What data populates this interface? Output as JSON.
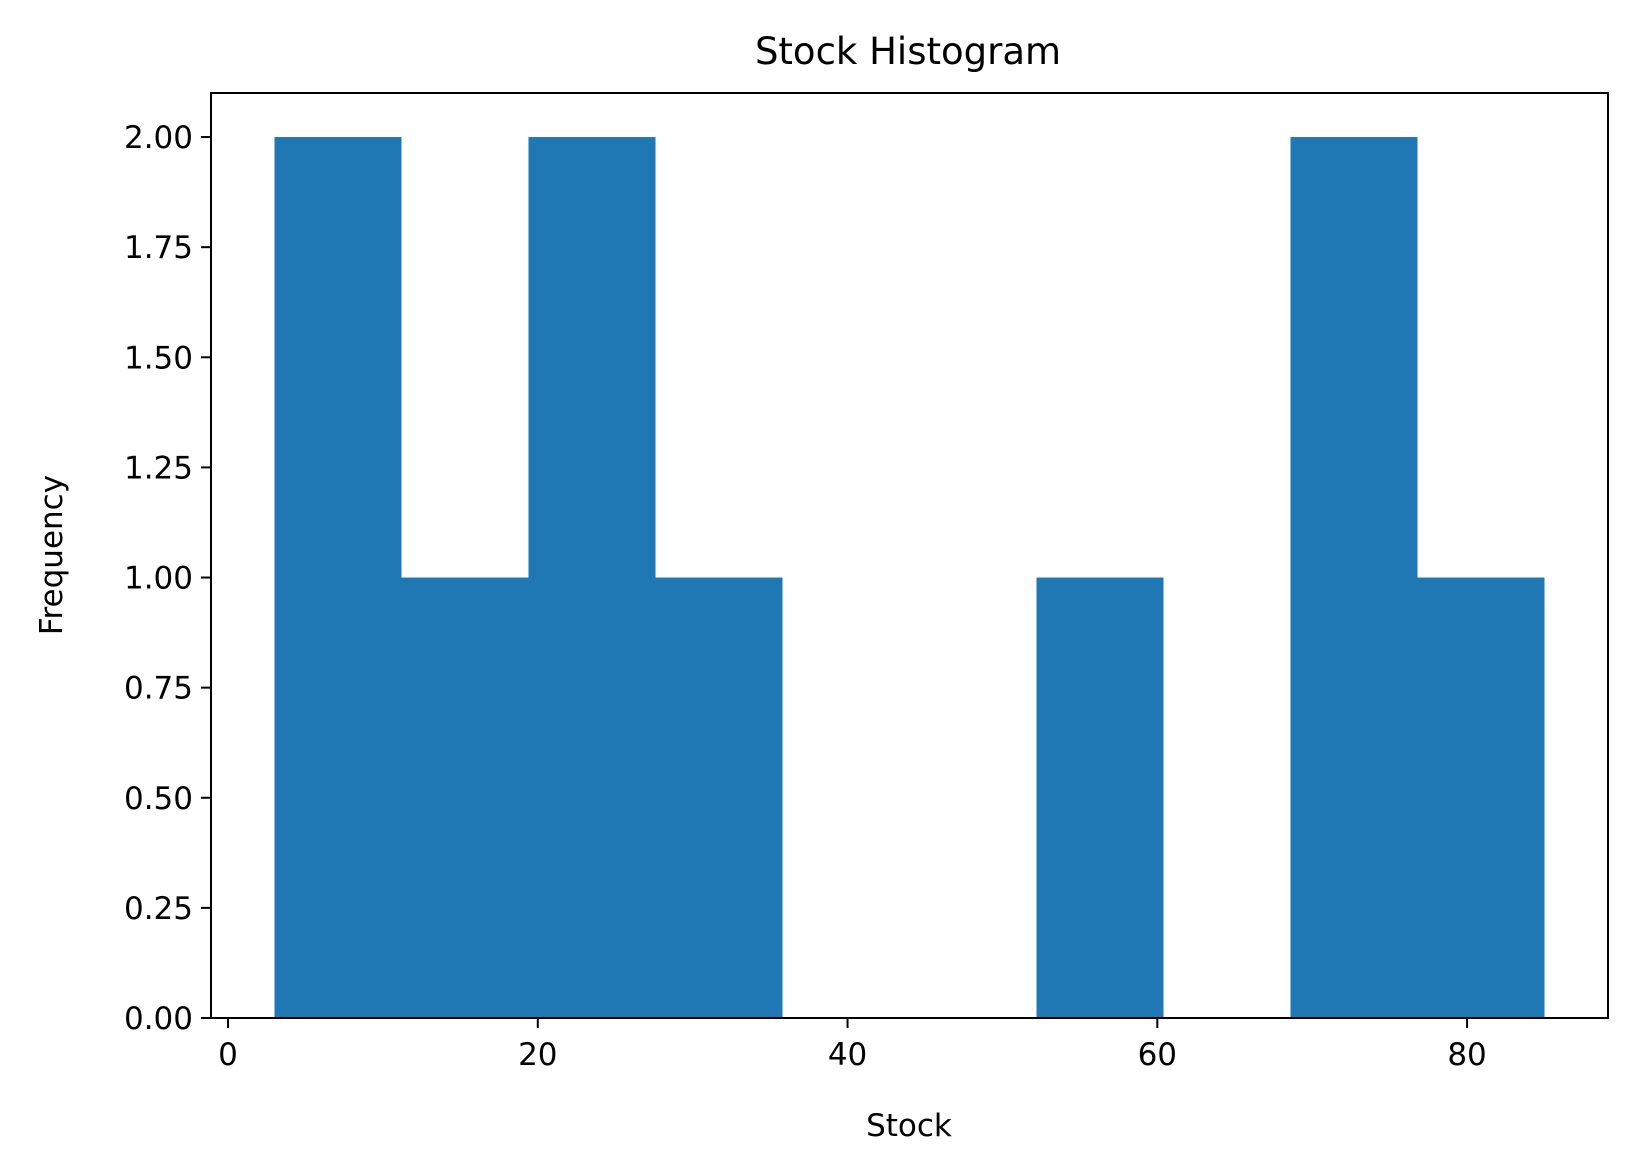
{
  "chart_data": {
    "type": "bar",
    "title": "Stock Histogram",
    "xlabel": "Stock",
    "ylabel": "Frequency",
    "bin_edges": [
      3,
      11.2,
      19.4,
      27.6,
      35.8,
      44,
      52.2,
      60.4,
      68.6,
      76.8,
      85
    ],
    "values": [
      2,
      1,
      2,
      1,
      0,
      0,
      1,
      0,
      2,
      1
    ],
    "xlim": [
      -1.1,
      89.1
    ],
    "ylim": [
      0,
      2.1
    ],
    "xticks": [
      0,
      20,
      40,
      60,
      80
    ],
    "xtick_labels": [
      "0",
      "20",
      "40",
      "60",
      "80"
    ],
    "yticks": [
      0,
      0.25,
      0.5,
      0.75,
      1.0,
      1.25,
      1.5,
      1.75,
      2.0
    ],
    "ytick_labels": [
      "0.00",
      "0.25",
      "0.50",
      "0.75",
      "1.00",
      "1.25",
      "1.50",
      "1.75",
      "2.00"
    ],
    "bar_color": "#1f77b4",
    "grid": false,
    "legend": false
  }
}
